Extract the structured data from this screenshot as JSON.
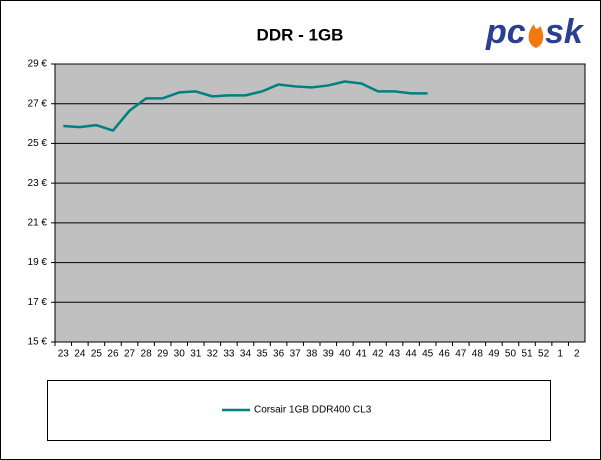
{
  "chart_data": {
    "type": "line",
    "title": "DDR - 1GB",
    "logo": [
      "pc",
      "sk"
    ],
    "categories": [
      "23",
      "24",
      "25",
      "26",
      "27",
      "28",
      "29",
      "30",
      "31",
      "32",
      "33",
      "34",
      "35",
      "36",
      "37",
      "38",
      "39",
      "40",
      "41",
      "42",
      "43",
      "44",
      "45",
      "46",
      "47",
      "48",
      "49",
      "50",
      "51",
      "52",
      "1",
      "2"
    ],
    "series": [
      {
        "name": "Corsair 1GB DDR400 CL3",
        "color": "#008080",
        "values": [
          25.88,
          25.82,
          25.92,
          25.65,
          26.65,
          27.27,
          27.27,
          27.57,
          27.62,
          27.37,
          27.42,
          27.42,
          27.62,
          27.97,
          27.87,
          27.82,
          27.92,
          28.12,
          28.02,
          27.62,
          27.62,
          27.52,
          27.52,
          null,
          null,
          null,
          null,
          null,
          null,
          null,
          null,
          null
        ]
      }
    ],
    "ylim": [
      15,
      29
    ],
    "yticks": [
      {
        "value": 15,
        "label": "15 €"
      },
      {
        "value": 17,
        "label": "17 €"
      },
      {
        "value": 19,
        "label": "19 €"
      },
      {
        "value": 21,
        "label": "21 €"
      },
      {
        "value": 23,
        "label": "23 €"
      },
      {
        "value": 25,
        "label": "25 €"
      },
      {
        "value": 27,
        "label": "27 €"
      },
      {
        "value": 29,
        "label": "29 €"
      }
    ],
    "grid": true,
    "plot_background": "#c0c0c0",
    "legend": "bottom"
  }
}
